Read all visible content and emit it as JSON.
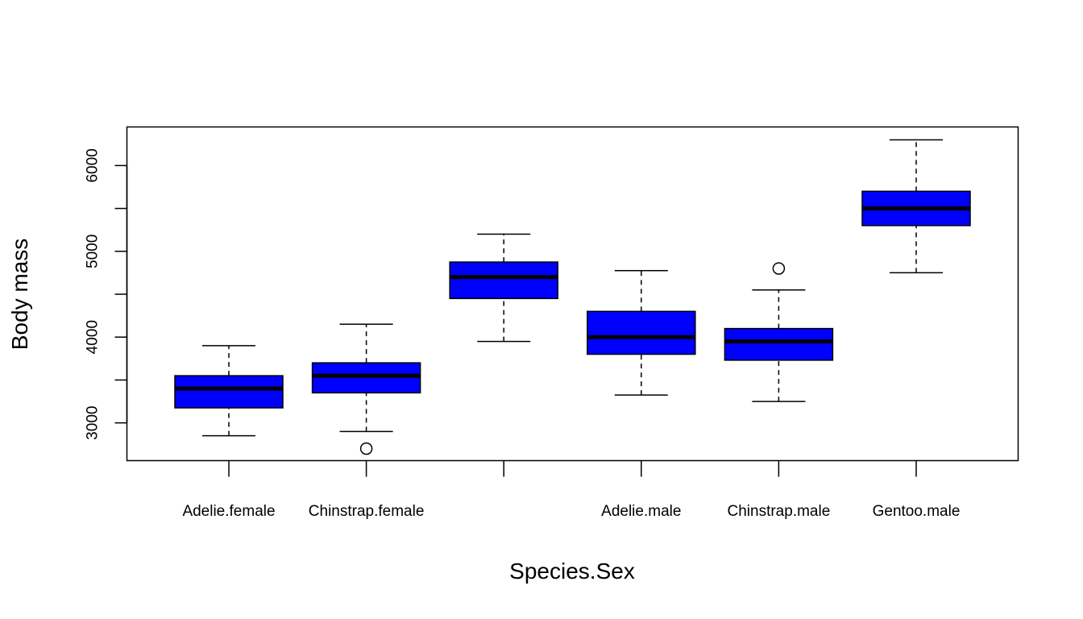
{
  "chart_data": {
    "type": "box",
    "title": "",
    "xlabel": "Species.Sex",
    "ylabel": "Body mass",
    "ylim": [
      2560,
      6450
    ],
    "y_ticks": [
      3000,
      4000,
      5000,
      6000
    ],
    "y_minor_ticks": [
      3500,
      4500,
      5500
    ],
    "y_tick_labels": [
      "3000",
      "4000",
      "5000",
      "6000"
    ],
    "categories": [
      "Adelie.female",
      "Chinstrap.female",
      "",
      "Adelie.male",
      "Chinstrap.male",
      "Gentoo.male"
    ],
    "box_color": "#0000ff",
    "grid": false,
    "legend": "none",
    "boxes": [
      {
        "category": "Adelie.female",
        "whisker_low": 2850,
        "q1": 3175,
        "median": 3400,
        "q3": 3550,
        "whisker_high": 3900,
        "outliers": []
      },
      {
        "category": "Chinstrap.female",
        "whisker_low": 2900,
        "q1": 3350,
        "median": 3550,
        "q3": 3700,
        "whisker_high": 4150,
        "outliers": [
          2700
        ]
      },
      {
        "category": "",
        "whisker_low": 3950,
        "q1": 4450,
        "median": 4700,
        "q3": 4875,
        "whisker_high": 5200,
        "outliers": []
      },
      {
        "category": "Adelie.male",
        "whisker_low": 3325,
        "q1": 3800,
        "median": 4000,
        "q3": 4300,
        "whisker_high": 4775,
        "outliers": []
      },
      {
        "category": "Chinstrap.male",
        "whisker_low": 3250,
        "q1": 3731,
        "median": 3950,
        "q3": 4100,
        "whisker_high": 4550,
        "outliers": [
          4800
        ]
      },
      {
        "category": "Gentoo.male",
        "whisker_low": 4750,
        "q1": 5300,
        "median": 5500,
        "q3": 5700,
        "whisker_high": 6300,
        "outliers": []
      }
    ]
  }
}
